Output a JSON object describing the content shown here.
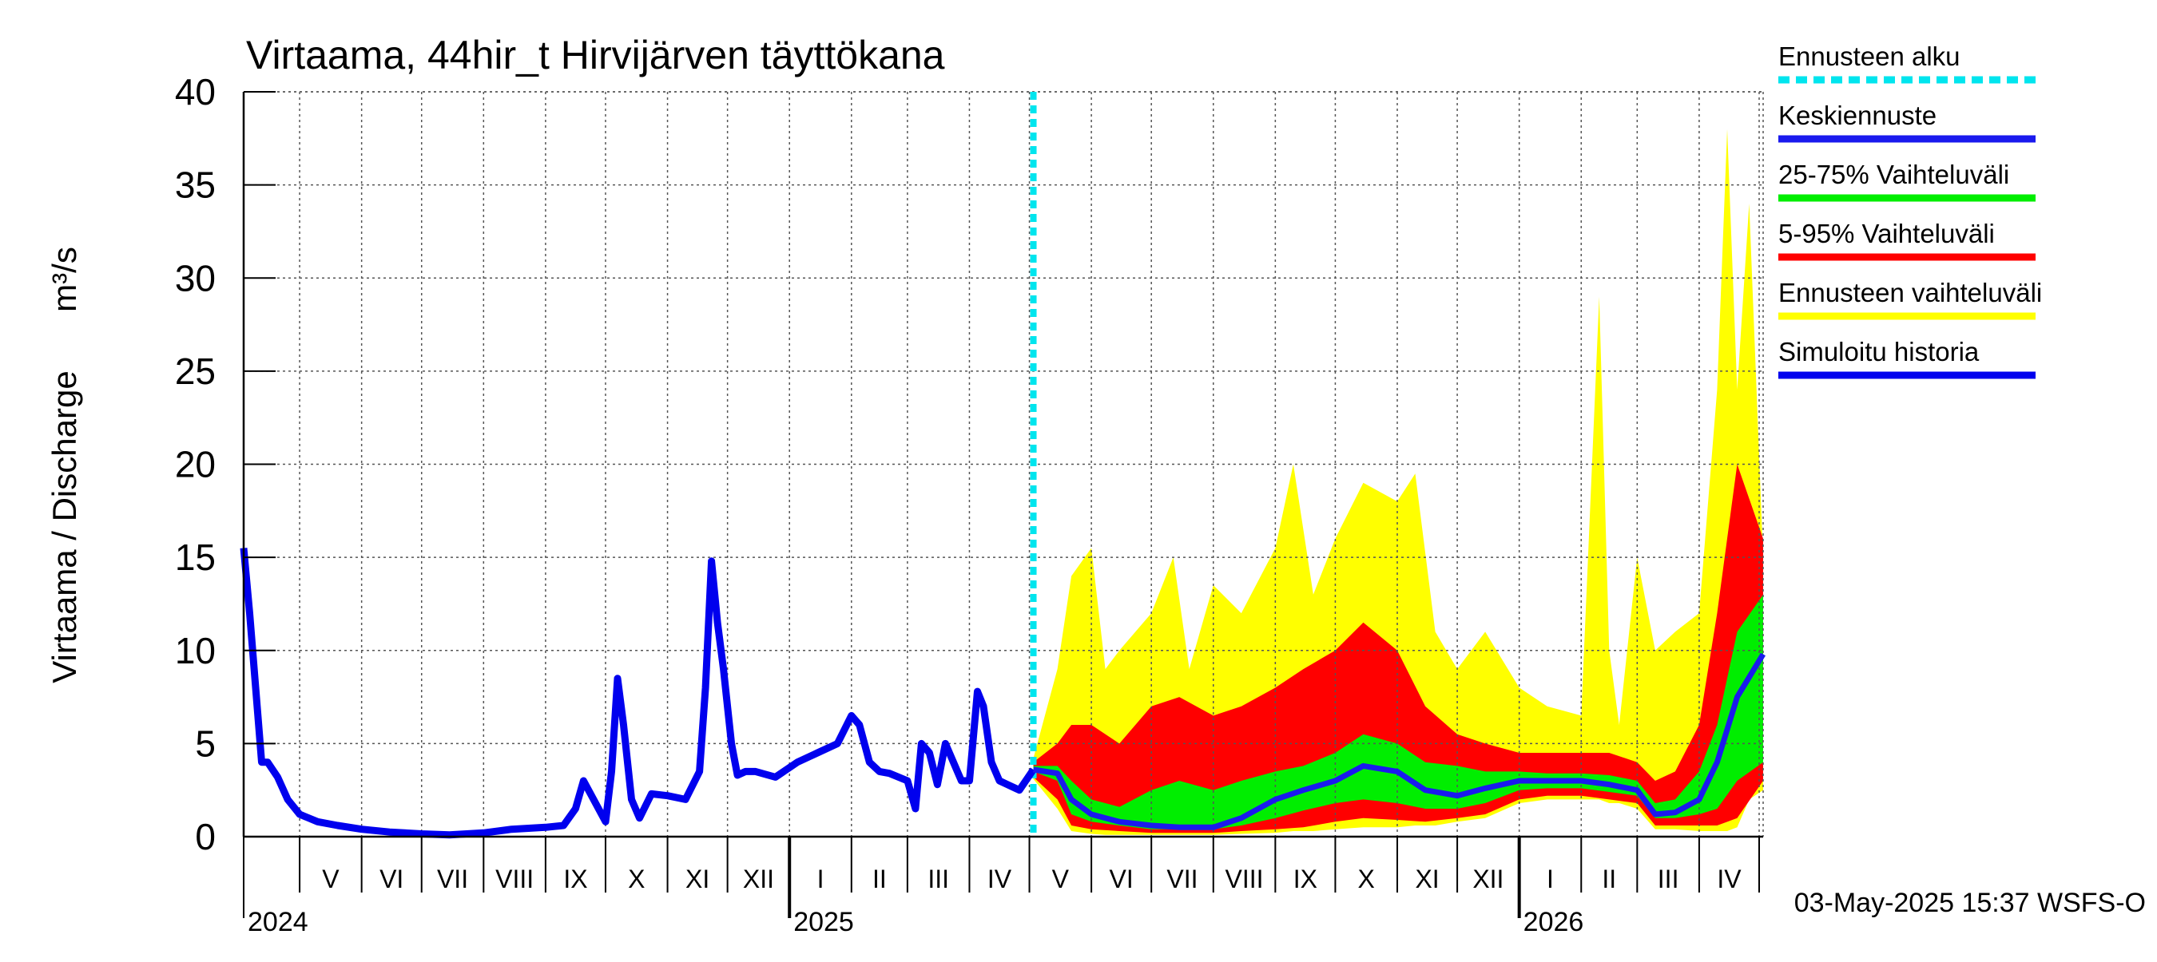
{
  "chart_data": {
    "type": "area",
    "title": "Virtaama, 44hir_t Hirvijärven täyttökana",
    "ylabel": "Virtaama / Discharge",
    "yunit": "m³/s",
    "ylim": [
      0,
      40
    ],
    "yticks": [
      0,
      5,
      10,
      15,
      20,
      25,
      30,
      35,
      40
    ],
    "xlim": [
      "2024-04-03",
      "2026-05-03"
    ],
    "grid": true,
    "legend_position": "right",
    "forecast_start": "2025-05-03",
    "timestamp": "03-May-2025 15:37 WSFS-O",
    "years": [
      {
        "label": "2024",
        "date": "2024-04-03"
      },
      {
        "label": "2025",
        "date": "2025-01-01"
      },
      {
        "label": "2026",
        "date": "2026-01-01"
      }
    ],
    "months": [
      {
        "label": "V",
        "date": "2024-05-01"
      },
      {
        "label": "VI",
        "date": "2024-06-01"
      },
      {
        "label": "VII",
        "date": "2024-07-01"
      },
      {
        "label": "VIII",
        "date": "2024-08-01"
      },
      {
        "label": "IX",
        "date": "2024-09-01"
      },
      {
        "label": "X",
        "date": "2024-10-01"
      },
      {
        "label": "XI",
        "date": "2024-11-01"
      },
      {
        "label": "XII",
        "date": "2024-12-01"
      },
      {
        "label": "I",
        "date": "2025-01-01"
      },
      {
        "label": "II",
        "date": "2025-02-01"
      },
      {
        "label": "III",
        "date": "2025-03-01"
      },
      {
        "label": "IV",
        "date": "2025-04-01"
      },
      {
        "label": "V",
        "date": "2025-05-01"
      },
      {
        "label": "VI",
        "date": "2025-06-01"
      },
      {
        "label": "VII",
        "date": "2025-07-01"
      },
      {
        "label": "VIII",
        "date": "2025-08-01"
      },
      {
        "label": "IX",
        "date": "2025-09-01"
      },
      {
        "label": "X",
        "date": "2025-10-01"
      },
      {
        "label": "XI",
        "date": "2025-11-01"
      },
      {
        "label": "XII",
        "date": "2025-12-01"
      },
      {
        "label": "I",
        "date": "2026-01-01"
      },
      {
        "label": "II",
        "date": "2026-02-01"
      },
      {
        "label": "III",
        "date": "2026-03-01"
      },
      {
        "label": "IV",
        "date": "2026-04-01"
      },
      {
        "label": "",
        "date": "2026-05-01"
      }
    ],
    "legend": [
      {
        "label": "Ennusteen alku",
        "color": "#00e5ee",
        "style": "dashed"
      },
      {
        "label": "Keskiennuste",
        "color": "#1a1aee",
        "style": "solid"
      },
      {
        "label": "25-75% Vaihteluväli",
        "color": "#00ee00",
        "style": "solid"
      },
      {
        "label": "5-95% Vaihteluväli",
        "color": "#ff0000",
        "style": "solid"
      },
      {
        "label": "Ennusteen vaihteluväli",
        "color": "#ffff00",
        "style": "solid"
      },
      {
        "label": "Simuloitu historia",
        "color": "#0000ee",
        "style": "solid"
      }
    ],
    "series": {
      "history": {
        "x": [
          "2024-04-03",
          "2024-04-06",
          "2024-04-09",
          "2024-04-12",
          "2024-04-15",
          "2024-04-20",
          "2024-04-25",
          "2024-05-01",
          "2024-05-10",
          "2024-05-20",
          "2024-06-01",
          "2024-06-15",
          "2024-07-01",
          "2024-07-15",
          "2024-08-01",
          "2024-08-15",
          "2024-09-01",
          "2024-09-10",
          "2024-09-16",
          "2024-09-20",
          "2024-09-25",
          "2024-10-01",
          "2024-10-04",
          "2024-10-07",
          "2024-10-10",
          "2024-10-14",
          "2024-10-18",
          "2024-10-24",
          "2024-11-01",
          "2024-11-10",
          "2024-11-17",
          "2024-11-20",
          "2024-11-23",
          "2024-11-26",
          "2024-11-29",
          "2024-12-03",
          "2024-12-06",
          "2024-12-10",
          "2024-12-15",
          "2024-12-25",
          "2025-01-05",
          "2025-01-15",
          "2025-01-25",
          "2025-02-01",
          "2025-02-05",
          "2025-02-10",
          "2025-02-15",
          "2025-02-20",
          "2025-03-01",
          "2025-03-05",
          "2025-03-08",
          "2025-03-12",
          "2025-03-16",
          "2025-03-20",
          "2025-03-24",
          "2025-03-28",
          "2025-04-01",
          "2025-04-05",
          "2025-04-08",
          "2025-04-12",
          "2025-04-16",
          "2025-04-20",
          "2025-04-26",
          "2025-05-03"
        ],
        "y": [
          15.5,
          12.0,
          8.0,
          4.0,
          4.0,
          3.2,
          2.0,
          1.2,
          0.8,
          0.6,
          0.4,
          0.25,
          0.15,
          0.1,
          0.2,
          0.4,
          0.5,
          0.6,
          1.5,
          3.0,
          2.0,
          0.8,
          3.5,
          8.5,
          6.0,
          2.0,
          1.0,
          2.3,
          2.2,
          2.0,
          3.5,
          8.0,
          14.8,
          11.5,
          9.0,
          5.0,
          3.3,
          3.5,
          3.5,
          3.2,
          4.0,
          4.5,
          5.0,
          6.5,
          6.0,
          4.0,
          3.5,
          3.4,
          3.0,
          1.5,
          5.0,
          4.5,
          2.8,
          5.0,
          4.0,
          3.0,
          3.0,
          7.8,
          7.0,
          4.0,
          3.0,
          2.8,
          2.5,
          3.6
        ]
      },
      "mean_forecast": {
        "x": [
          "2025-05-03",
          "2025-05-15",
          "2025-05-22",
          "2025-06-01",
          "2025-06-15",
          "2025-07-01",
          "2025-07-15",
          "2025-08-01",
          "2025-08-15",
          "2025-09-01",
          "2025-09-15",
          "2025-10-01",
          "2025-10-15",
          "2025-11-01",
          "2025-11-15",
          "2025-12-01",
          "2025-12-15",
          "2026-01-01",
          "2026-01-15",
          "2026-02-01",
          "2026-02-15",
          "2026-03-01",
          "2026-03-10",
          "2026-03-20",
          "2026-04-01",
          "2026-04-10",
          "2026-04-20",
          "2026-05-03"
        ],
        "y": [
          3.6,
          3.4,
          2.0,
          1.2,
          0.8,
          0.6,
          0.5,
          0.5,
          1.0,
          2.0,
          2.5,
          3.0,
          3.8,
          3.5,
          2.5,
          2.2,
          2.6,
          3.0,
          3.0,
          3.0,
          2.8,
          2.5,
          1.2,
          1.3,
          2.0,
          4.0,
          7.5,
          9.8
        ]
      },
      "band_25_75": {
        "x": [
          "2025-05-03",
          "2025-05-15",
          "2025-05-22",
          "2025-06-01",
          "2025-06-15",
          "2025-07-01",
          "2025-07-15",
          "2025-08-01",
          "2025-08-15",
          "2025-09-01",
          "2025-09-15",
          "2025-10-01",
          "2025-10-15",
          "2025-11-01",
          "2025-11-15",
          "2025-12-01",
          "2025-12-15",
          "2026-01-01",
          "2026-01-15",
          "2026-02-01",
          "2026-02-15",
          "2026-03-01",
          "2026-03-10",
          "2026-03-20",
          "2026-04-01",
          "2026-04-10",
          "2026-04-20",
          "2026-05-03"
        ],
        "low": [
          3.5,
          3.0,
          1.2,
          0.8,
          0.6,
          0.4,
          0.4,
          0.4,
          0.6,
          1.0,
          1.4,
          1.8,
          2.0,
          1.8,
          1.5,
          1.5,
          1.8,
          2.5,
          2.6,
          2.6,
          2.4,
          2.2,
          1.0,
          1.0,
          1.2,
          1.5,
          3.0,
          4.0
        ],
        "high": [
          3.8,
          3.8,
          3.0,
          2.0,
          1.6,
          2.5,
          3.0,
          2.5,
          3.0,
          3.5,
          3.8,
          4.5,
          5.5,
          5.0,
          4.0,
          3.8,
          3.5,
          3.5,
          3.4,
          3.4,
          3.3,
          3.0,
          1.8,
          2.0,
          3.5,
          6.0,
          11.0,
          13.0
        ]
      },
      "band_5_95": {
        "x": [
          "2025-05-03",
          "2025-05-15",
          "2025-05-22",
          "2025-06-01",
          "2025-06-15",
          "2025-07-01",
          "2025-07-15",
          "2025-08-01",
          "2025-08-15",
          "2025-09-01",
          "2025-09-15",
          "2025-10-01",
          "2025-10-15",
          "2025-11-01",
          "2025-11-15",
          "2025-12-01",
          "2025-12-15",
          "2026-01-01",
          "2026-01-15",
          "2026-02-01",
          "2026-02-15",
          "2026-03-01",
          "2026-03-10",
          "2026-03-20",
          "2026-04-01",
          "2026-04-10",
          "2026-04-20",
          "2026-05-03"
        ],
        "low": [
          3.2,
          2.0,
          0.6,
          0.4,
          0.3,
          0.2,
          0.2,
          0.2,
          0.3,
          0.4,
          0.5,
          0.8,
          1.0,
          0.9,
          0.8,
          1.0,
          1.2,
          2.0,
          2.2,
          2.2,
          2.0,
          1.8,
          0.6,
          0.6,
          0.6,
          0.6,
          1.0,
          3.0
        ],
        "high": [
          4.0,
          5.0,
          6.0,
          6.0,
          5.0,
          7.0,
          7.5,
          6.5,
          7.0,
          8.0,
          9.0,
          10.0,
          11.5,
          10.0,
          7.0,
          5.5,
          5.0,
          4.5,
          4.5,
          4.5,
          4.5,
          4.0,
          3.0,
          3.5,
          6.0,
          12.0,
          20.0,
          16.0
        ]
      },
      "band_full": {
        "x": [
          "2025-05-03",
          "2025-05-15",
          "2025-05-22",
          "2025-06-01",
          "2025-06-08",
          "2025-06-15",
          "2025-07-01",
          "2025-07-12",
          "2025-07-20",
          "2025-08-01",
          "2025-08-15",
          "2025-09-01",
          "2025-09-10",
          "2025-09-20",
          "2025-10-01",
          "2025-10-15",
          "2025-11-01",
          "2025-11-10",
          "2025-11-20",
          "2025-12-01",
          "2025-12-15",
          "2026-01-01",
          "2026-01-15",
          "2026-02-01",
          "2026-02-10",
          "2026-02-15",
          "2026-02-20",
          "2026-03-01",
          "2026-03-10",
          "2026-03-20",
          "2026-04-01",
          "2026-04-10",
          "2026-04-15",
          "2026-04-20",
          "2026-04-26",
          "2026-05-03"
        ],
        "low": [
          3.1,
          1.5,
          0.3,
          0.15,
          0.1,
          0.1,
          0.1,
          0.1,
          0.1,
          0.1,
          0.15,
          0.2,
          0.3,
          0.3,
          0.4,
          0.5,
          0.5,
          0.6,
          0.6,
          0.8,
          1.0,
          1.8,
          2.0,
          2.0,
          2.0,
          1.8,
          1.8,
          1.5,
          0.4,
          0.4,
          0.3,
          0.3,
          0.3,
          0.5,
          2.0,
          2.5
        ],
        "high": [
          4.2,
          9.0,
          14.0,
          15.5,
          9.0,
          10.0,
          12.0,
          15.0,
          9.0,
          13.5,
          12.0,
          15.5,
          20.0,
          13.0,
          16.0,
          19.0,
          18.0,
          19.5,
          11.0,
          9.0,
          11.0,
          8.0,
          7.0,
          6.5,
          29.0,
          10.0,
          6.0,
          15.0,
          10.0,
          11.0,
          12.0,
          24.0,
          38.0,
          24.0,
          34.0,
          15.0
        ]
      }
    }
  }
}
